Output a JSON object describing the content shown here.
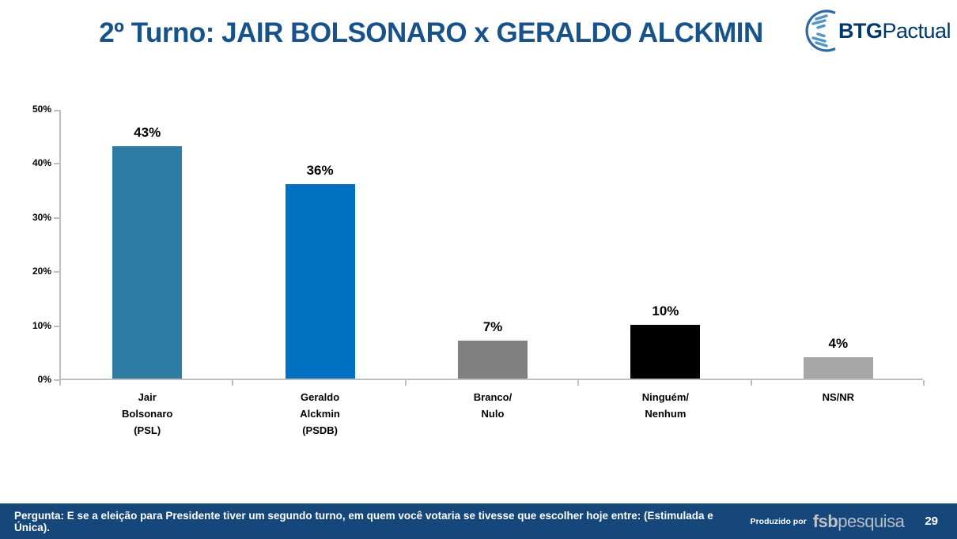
{
  "page": {
    "title": "2º Turno: JAIR BOLSONARO x GERALDO ALCKMIN"
  },
  "branding": {
    "logo_bold": "BTG",
    "logo_regular": "Pactual",
    "globe_icon": "btg-globe-icon"
  },
  "footer": {
    "question": "Pergunta:  E se a eleição para Presidente tiver um segundo turno, em quem você votaria se tivesse que escolher hoje entre:  (Estimulada e Única).",
    "produced_by_label": "Produzido por",
    "producer_logo_bold": "fsb",
    "producer_logo_regular": "pesquisa",
    "page_number": "29"
  },
  "colors": {
    "title_blue": "#17528a",
    "footer_bg": "#15477a",
    "axis_gray": "#bfbfbf",
    "logo_navy": "#00386b",
    "logo_blue": "#2a6ba3",
    "logo_light_blue": "#4f96c8",
    "producer_silver": "#bfc3cb",
    "bar_bolsonaro": "#2d7ca4",
    "bar_alckmin": "#0070c0",
    "bar_branco_nulo": "#808080",
    "bar_ninguem": "#000000",
    "bar_nsnr": "#a6a6a6"
  },
  "chart_data": {
    "type": "bar",
    "title": "2º Turno: JAIR BOLSONARO x GERALDO ALCKMIN",
    "categories": [
      [
        "Jair",
        "Bolsonaro",
        "(PSL)"
      ],
      [
        "Geraldo",
        "Alckmin",
        "(PSDB)"
      ],
      [
        "Branco/",
        "Nulo"
      ],
      [
        "Ninguém/",
        "Nenhum"
      ],
      [
        "NS/NR"
      ]
    ],
    "values": [
      43,
      36,
      7,
      10,
      4
    ],
    "value_labels": [
      "43%",
      "36%",
      "7%",
      "10%",
      "4%"
    ],
    "bar_colors": [
      "#2d7ca4",
      "#0070c0",
      "#808080",
      "#000000",
      "#a6a6a6"
    ],
    "xlabel": "",
    "ylabel": "",
    "ylim": [
      0,
      50
    ],
    "yticks": [
      0,
      10,
      20,
      30,
      40,
      50
    ],
    "ytick_labels": [
      "0%",
      "10%",
      "20%",
      "30%",
      "40%",
      "50%"
    ],
    "grid": false,
    "legend": false
  }
}
